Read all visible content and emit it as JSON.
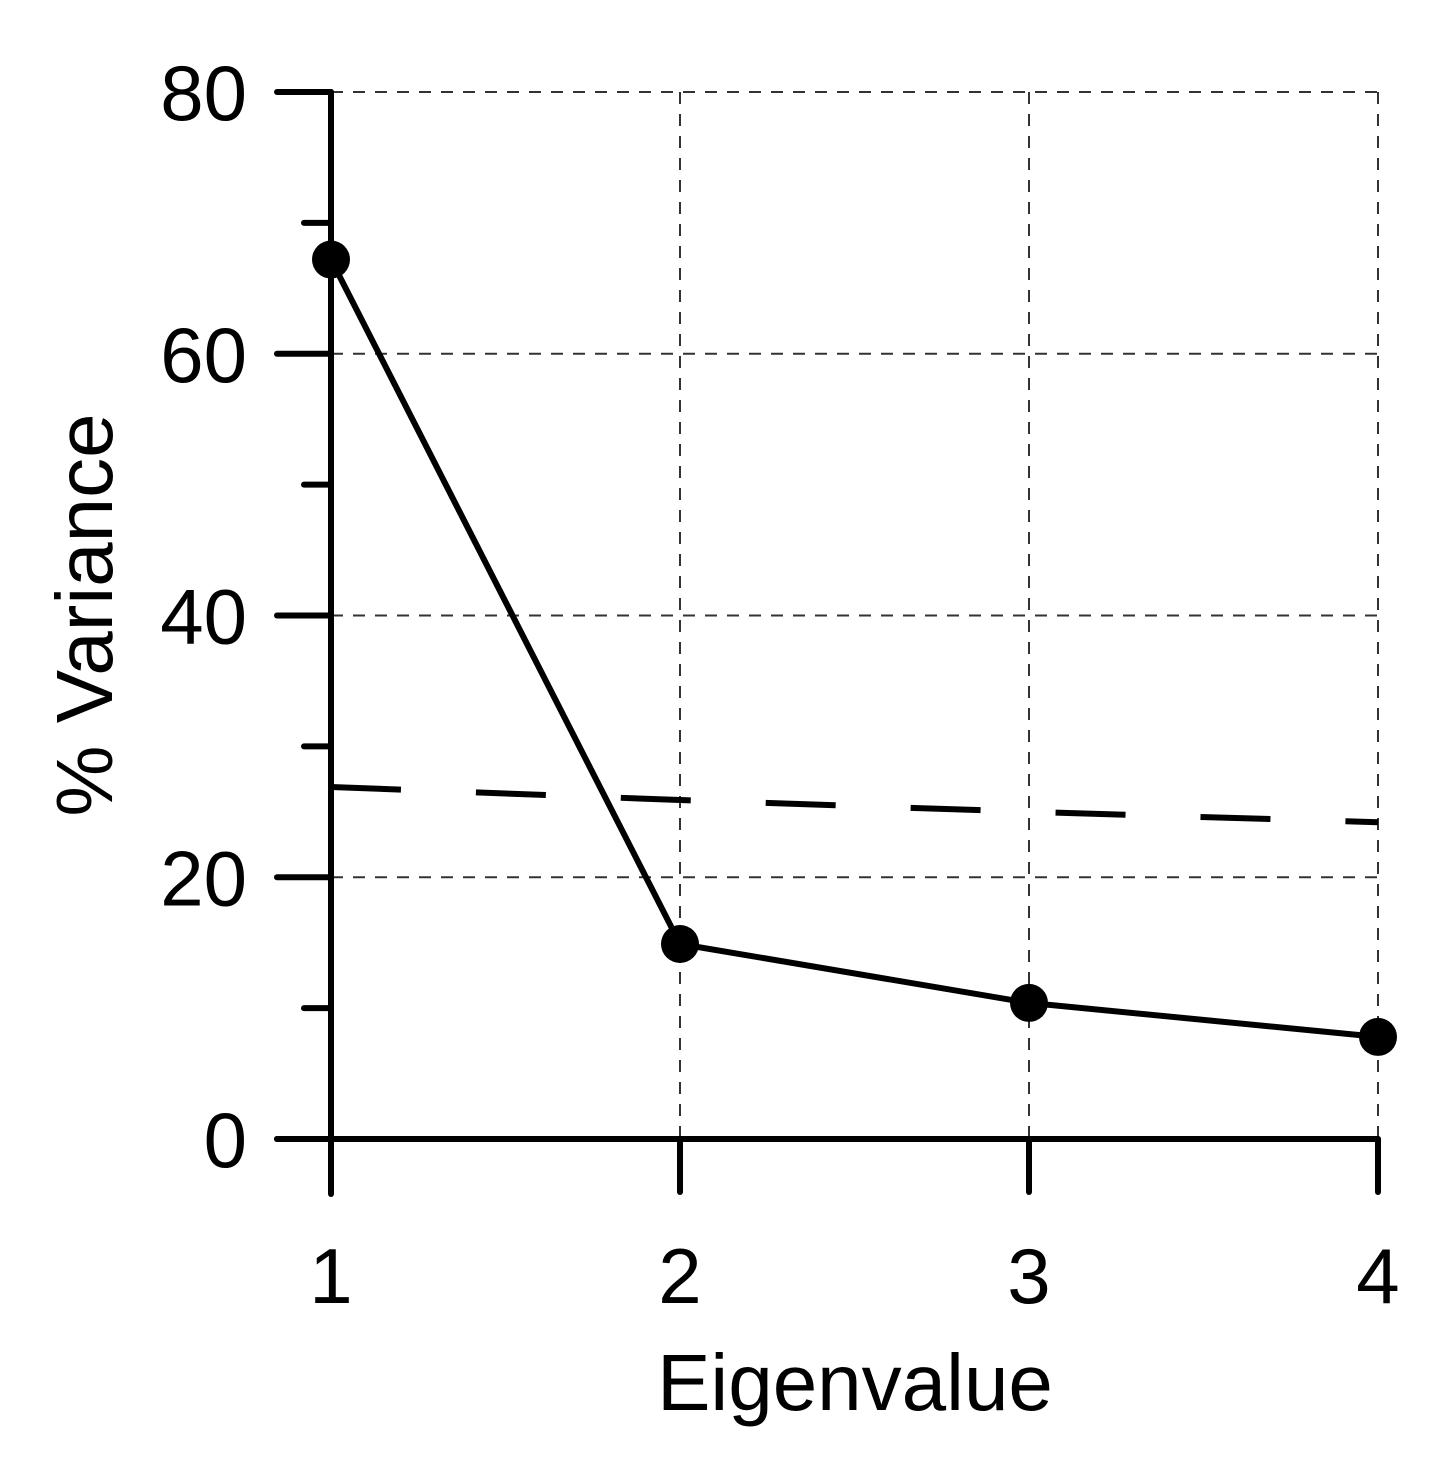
{
  "chart_data": {
    "type": "line",
    "title": "",
    "xlabel": "Eigenvalue",
    "ylabel": "% Variance",
    "x": [
      1,
      2,
      3,
      4
    ],
    "xlim": [
      1,
      4
    ],
    "ylim": [
      0,
      80
    ],
    "x_ticks": [
      1,
      2,
      3,
      4
    ],
    "y_ticks": [
      0,
      20,
      40,
      60,
      80
    ],
    "y_minor_ticks": [
      10,
      30,
      50,
      70
    ],
    "grid": true,
    "grid_style": "dashed",
    "series": [
      {
        "style": "solid-with-markers",
        "color": "#000000",
        "values": [
          67.2,
          14.9,
          10.4,
          7.8
        ]
      },
      {
        "style": "dashed",
        "color": "#000000",
        "values": [
          26.9,
          25.9,
          25.0,
          24.2
        ]
      }
    ]
  }
}
